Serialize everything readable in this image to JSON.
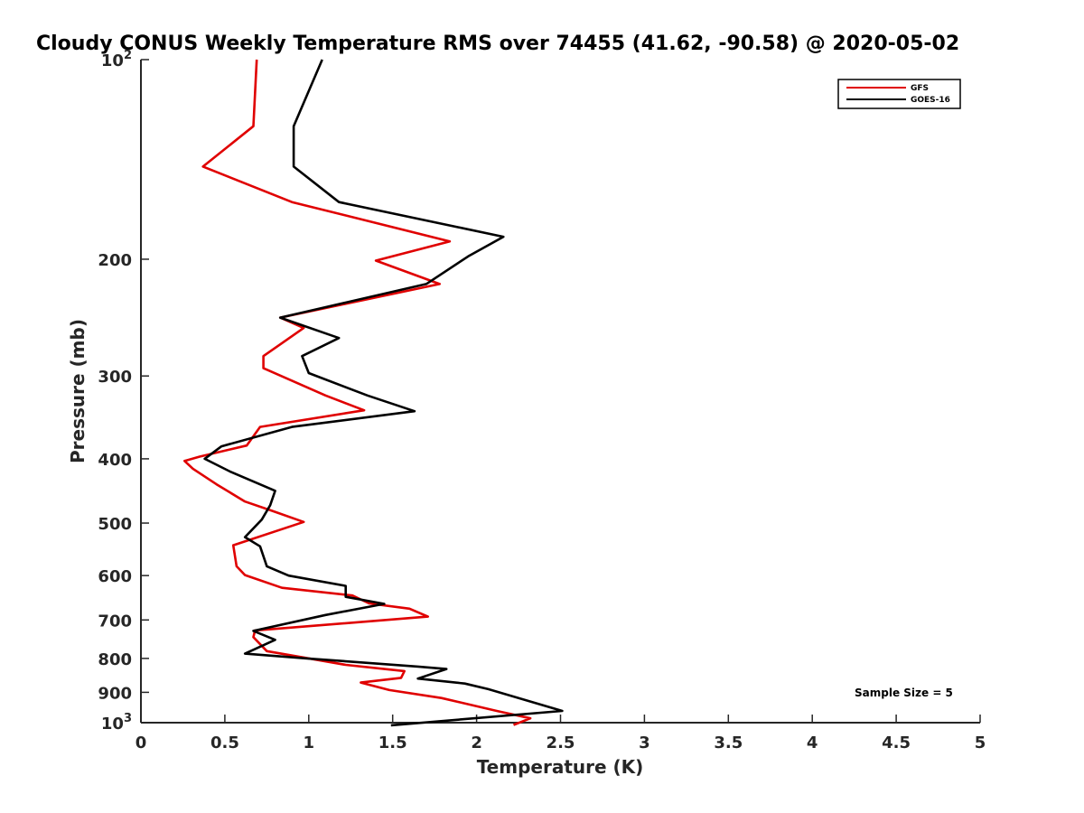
{
  "chart_data": {
    "type": "line",
    "title": "Cloudy CONUS Weekly Temperature RMS over 74455 (41.62, -90.58) @ 2020-05-02",
    "xlabel": "Temperature (K)",
    "ylabel": "Pressure (mb)",
    "xlim": [
      0,
      5
    ],
    "ylim": [
      100,
      1000
    ],
    "y_scale": "log",
    "y_reversed": true,
    "x_ticks": [
      0,
      0.5,
      1,
      1.5,
      2,
      2.5,
      3,
      3.5,
      4,
      4.5,
      5
    ],
    "x_tick_labels": [
      "0",
      "0.5",
      "1",
      "1.5",
      "2",
      "2.5",
      "3",
      "3.5",
      "4",
      "4.5",
      "5"
    ],
    "y_ticks": [
      100,
      200,
      300,
      400,
      500,
      600,
      700,
      800,
      900,
      1000
    ],
    "y_tick_labels": [
      {
        "base": "10",
        "exp": "2"
      },
      {
        "base": "200",
        "exp": ""
      },
      {
        "base": "300",
        "exp": ""
      },
      {
        "base": "400",
        "exp": ""
      },
      {
        "base": "500",
        "exp": ""
      },
      {
        "base": "600",
        "exp": ""
      },
      {
        "base": "700",
        "exp": ""
      },
      {
        "base": "800",
        "exp": ""
      },
      {
        "base": "900",
        "exp": ""
      },
      {
        "base": "10",
        "exp": "3"
      }
    ],
    "grid": false,
    "legend_position": "top-right",
    "annotation": "Sample Size = 5",
    "series": [
      {
        "name": "GFS",
        "color": "#e00000",
        "x": [
          0.69,
          0.67,
          0.37,
          0.9,
          1.84,
          1.4,
          1.78,
          0.83,
          0.97,
          0.73,
          0.73,
          1.1,
          1.33,
          0.71,
          0.63,
          0.35,
          0.26,
          0.31,
          0.45,
          0.62,
          0.78,
          0.97,
          0.55,
          0.57,
          0.62,
          0.84,
          1.26,
          1.36,
          1.6,
          1.71,
          0.68,
          0.67,
          0.75,
          1.22,
          1.57,
          1.55,
          1.31,
          1.48,
          1.79,
          2.12,
          2.32,
          2.22
        ],
        "y": [
          100,
          126,
          145,
          164,
          188,
          201,
          218,
          245,
          254,
          280,
          292,
          321,
          338,
          358,
          382,
          397,
          403,
          414,
          437,
          464,
          479,
          498,
          540,
          581,
          599,
          626,
          643,
          661,
          673,
          692,
          726,
          743,
          780,
          818,
          836,
          856,
          870,
          893,
          918,
          960,
          985,
          1008
        ]
      },
      {
        "name": "GOES-16",
        "color": "#000000",
        "x": [
          1.08,
          0.91,
          0.91,
          0.91,
          1.18,
          2.16,
          1.95,
          1.7,
          0.83,
          1.18,
          0.96,
          1.0,
          1.35,
          1.63,
          0.9,
          0.48,
          0.38,
          0.53,
          0.8,
          0.77,
          0.72,
          0.62,
          0.71,
          0.75,
          0.88,
          1.22,
          1.22,
          1.45,
          1.1,
          0.67,
          0.8,
          0.62,
          0.99,
          1.65,
          1.82,
          1.65,
          1.93,
          2.07,
          2.51,
          1.49
        ],
        "y": [
          100,
          126,
          145,
          145,
          164,
          185,
          198,
          218,
          245,
          263,
          280,
          297,
          321,
          339,
          358,
          383,
          400,
          418,
          447,
          470,
          494,
          525,
          542,
          581,
          600,
          622,
          646,
          662,
          688,
          727,
          750,
          787,
          800,
          823,
          830,
          858,
          873,
          890,
          960,
          1009
        ]
      }
    ]
  }
}
